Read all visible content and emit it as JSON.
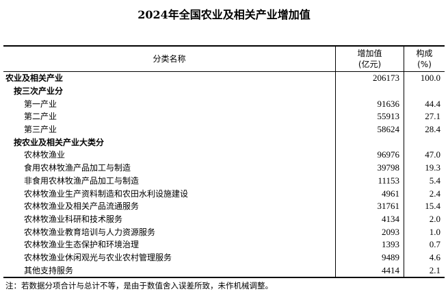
{
  "title": "2024年全国农业及相关产业增加值",
  "headers": {
    "name": "分类名称",
    "value_l1": "增加值",
    "value_l2": "(亿元)",
    "share_l1": "构成",
    "share_l2": "(%)"
  },
  "rows": [
    {
      "name": "农业及相关产业",
      "level": 1,
      "value": "206173",
      "share": "100.0"
    },
    {
      "name": "按三次产业分",
      "level": 2,
      "value": "",
      "share": ""
    },
    {
      "name": "第一产业",
      "level": 3,
      "value": "91636",
      "share": "44.4"
    },
    {
      "name": "第二产业",
      "level": 3,
      "value": "55913",
      "share": "27.1"
    },
    {
      "name": "第三产业",
      "level": 3,
      "value": "58624",
      "share": "28.4"
    },
    {
      "name": "按农业及相关产业大类分",
      "level": 2,
      "value": "",
      "share": ""
    },
    {
      "name": "农林牧渔业",
      "level": 3,
      "value": "96976",
      "share": "47.0"
    },
    {
      "name": "食用农林牧渔产品加工与制造",
      "level": 3,
      "value": "39798",
      "share": "19.3"
    },
    {
      "name": "非食用农林牧渔产品加工与制造",
      "level": 3,
      "value": "11153",
      "share": "5.4"
    },
    {
      "name": "农林牧渔业生产资料制造和农田水利设施建设",
      "level": 3,
      "value": "4961",
      "share": "2.4"
    },
    {
      "name": "农林牧渔业及相关产品流通服务",
      "level": 3,
      "value": "31761",
      "share": "15.4"
    },
    {
      "name": "农林牧渔业科研和技术服务",
      "level": 3,
      "value": "4134",
      "share": "2.0"
    },
    {
      "name": "农林牧渔业教育培训与人力资源服务",
      "level": 3,
      "value": "2093",
      "share": "1.0"
    },
    {
      "name": "农林牧渔业生态保护和环境治理",
      "level": 3,
      "value": "1393",
      "share": "0.7"
    },
    {
      "name": "农林牧渔业休闲观光与农业农村管理服务",
      "level": 3,
      "value": "9489",
      "share": "4.6"
    },
    {
      "name": "其他支持服务",
      "level": 3,
      "value": "4414",
      "share": "2.1"
    }
  ],
  "note": "注：若数据分项合计与总计不等，是由于数值舍入误差所致，未作机械调整。"
}
